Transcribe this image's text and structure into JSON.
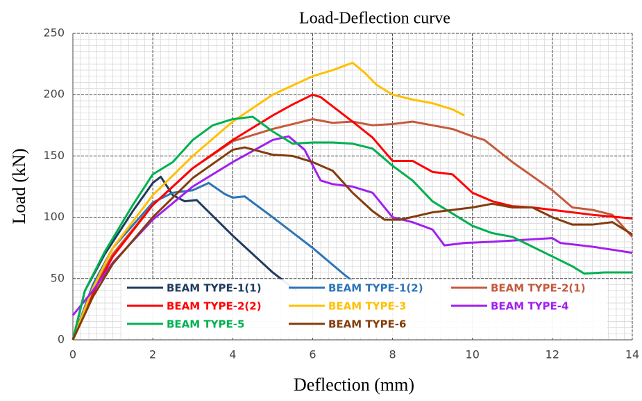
{
  "chart_data": {
    "type": "line",
    "title": "Load-Deflection curve",
    "xlabel": "Deflection (mm)",
    "ylabel": "Load (kN)",
    "xlim": [
      0,
      14
    ],
    "xticks": [
      0,
      2,
      4,
      6,
      8,
      10,
      12,
      14
    ],
    "ylim": [
      0,
      250
    ],
    "yticks": [
      0,
      50,
      100,
      150,
      200,
      250
    ],
    "grid": true,
    "legend": "lower center",
    "series": [
      {
        "name": "BEAM TYPE-1(1)",
        "color": "#1f3b5e",
        "x": [
          0,
          0.3,
          0.8,
          1.5,
          2,
          2.2,
          2.5,
          2.8,
          3.1,
          4,
          5,
          5.6
        ],
        "values": [
          0,
          40,
          70,
          105,
          128,
          133,
          118,
          113,
          114,
          85,
          55,
          40
        ]
      },
      {
        "name": "BEAM TYPE-1(2)",
        "color": "#2e75b6",
        "x": [
          0,
          0.5,
          1,
          2,
          2.5,
          3,
          3.4,
          3.8,
          4,
          4.3,
          5,
          6,
          6.8,
          7
        ],
        "values": [
          0,
          45,
          75,
          112,
          120,
          122,
          128,
          119,
          116,
          117,
          100,
          75,
          53,
          48
        ]
      },
      {
        "name": "BEAM TYPE-2(1)",
        "color": "#c55a3c",
        "x": [
          0,
          0.5,
          1,
          2,
          3,
          4,
          5,
          5.5,
          6,
          6.5,
          7,
          7.5,
          8,
          8.5,
          9,
          9.5,
          10,
          10.3,
          11,
          12,
          12.5,
          13,
          13.5,
          14
        ],
        "values": [
          0,
          40,
          70,
          110,
          140,
          162,
          172,
          176,
          180,
          177,
          178,
          175,
          176,
          178,
          175,
          172,
          166,
          163,
          145,
          122,
          108,
          106,
          102,
          84
        ]
      },
      {
        "name": "BEAM TYPE-2(2)",
        "color": "#ff0000",
        "x": [
          0,
          0.5,
          1,
          2,
          3,
          4,
          5,
          5.5,
          6,
          6.2,
          7,
          7.5,
          8,
          8.5,
          9,
          9.5,
          10,
          10.5,
          11,
          11.5,
          12,
          13,
          14
        ],
        "values": [
          0,
          38,
          68,
          110,
          140,
          163,
          183,
          192,
          200,
          198,
          178,
          165,
          146,
          146,
          137,
          135,
          120,
          113,
          109,
          108,
          106,
          102,
          99
        ]
      },
      {
        "name": "BEAM TYPE-3",
        "color": "#ffc000",
        "x": [
          0,
          0.5,
          1,
          2,
          3,
          4,
          5,
          6,
          6.5,
          7,
          7.3,
          7.6,
          8,
          8.5,
          9,
          9.5,
          9.8
        ],
        "values": [
          0,
          42,
          75,
          118,
          150,
          178,
          200,
          215,
          220,
          226,
          218,
          208,
          200,
          196,
          193,
          188,
          183
        ]
      },
      {
        "name": "BEAM TYPE-4",
        "color": "#a020f0",
        "x": [
          0,
          0.5,
          1,
          2,
          3,
          4,
          5,
          5.4,
          5.8,
          6.2,
          6.5,
          7,
          7.5,
          8,
          8.5,
          9,
          9.3,
          9.8,
          10.5,
          11,
          12,
          12.2,
          13,
          14
        ],
        "values": [
          20,
          40,
          63,
          98,
          125,
          145,
          163,
          166,
          155,
          130,
          127,
          125,
          120,
          100,
          96,
          90,
          77,
          79,
          80,
          81,
          83,
          79,
          76,
          71
        ]
      },
      {
        "name": "BEAM TYPE-5",
        "color": "#00b050",
        "x": [
          0,
          0.3,
          0.8,
          1.5,
          2,
          2.5,
          3,
          3.5,
          4,
          4.5,
          5,
          5.5,
          6,
          6.5,
          7,
          7.5,
          8,
          8.5,
          9,
          10,
          10.5,
          11,
          12,
          12.5,
          12.8,
          13.3,
          14
        ],
        "values": [
          0,
          40,
          72,
          110,
          135,
          145,
          163,
          175,
          180,
          182,
          170,
          160,
          161,
          161,
          160,
          156,
          142,
          130,
          113,
          93,
          87,
          84,
          68,
          60,
          54,
          55,
          55
        ]
      },
      {
        "name": "BEAM TYPE-6",
        "color": "#843c0c",
        "x": [
          0,
          0.5,
          1,
          2,
          3,
          4,
          4.3,
          5,
          5.5,
          6,
          6.5,
          7,
          7.5,
          7.8,
          8.2,
          9,
          10,
          10.5,
          11,
          11.5,
          12,
          12.5,
          13,
          13.5,
          14
        ],
        "values": [
          0,
          35,
          62,
          100,
          132,
          155,
          157,
          151,
          150,
          145,
          138,
          120,
          105,
          98,
          98,
          104,
          108,
          111,
          108,
          108,
          100,
          94,
          94,
          96,
          86
        ]
      }
    ]
  }
}
